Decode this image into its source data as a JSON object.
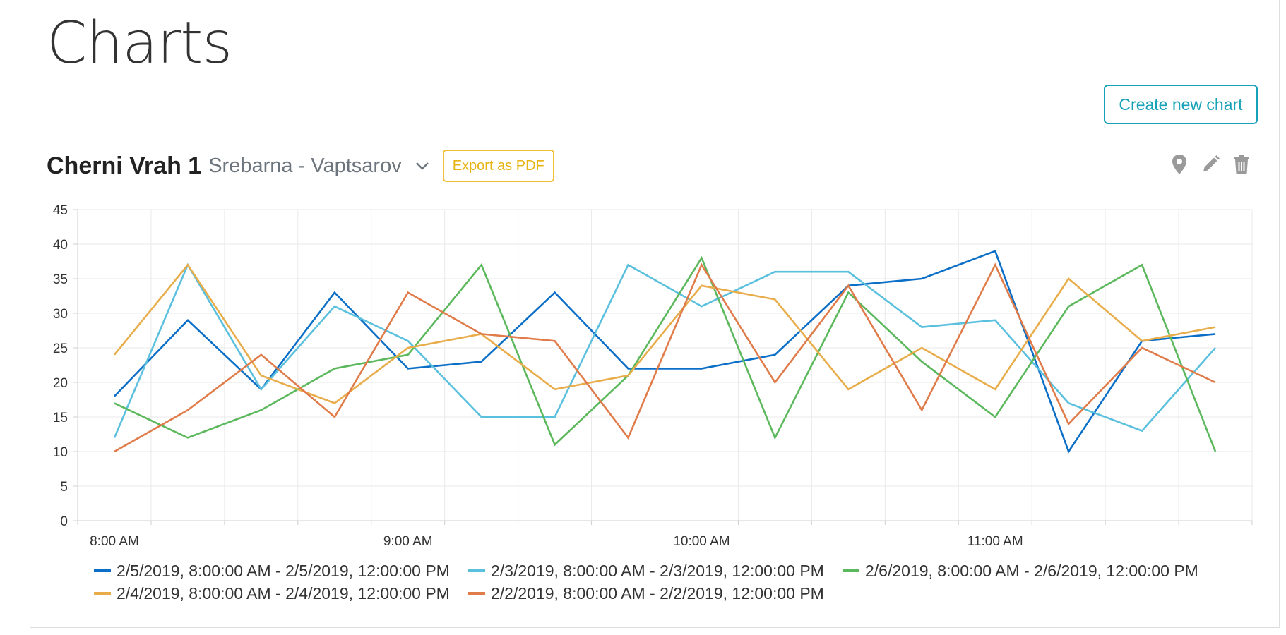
{
  "page": {
    "title": "Charts"
  },
  "toolbar": {
    "create_label": "Create new chart"
  },
  "chart_card": {
    "title": "Cherni Vrah 1",
    "subtitle": "Srebarna - Vaptsarov",
    "export_label": "Export as PDF",
    "icons": [
      "chevron-down-icon",
      "map-pin-icon",
      "pencil-icon",
      "trash-icon"
    ]
  },
  "chart_data": {
    "type": "line",
    "title": "",
    "xlabel": "",
    "ylabel": "",
    "ylim": [
      0,
      45
    ],
    "yticks": [
      0,
      5,
      10,
      15,
      20,
      25,
      30,
      35,
      40,
      45
    ],
    "x": [
      "8:00 AM",
      "8:15 AM",
      "8:30 AM",
      "8:45 AM",
      "9:00 AM",
      "9:15 AM",
      "9:30 AM",
      "9:45 AM",
      "10:00 AM",
      "10:15 AM",
      "10:30 AM",
      "10:45 AM",
      "11:00 AM",
      "11:15 AM",
      "11:30 AM",
      "11:45 AM"
    ],
    "xtick_labels": [
      "8:00 AM",
      "9:00 AM",
      "10:00 AM",
      "11:00 AM"
    ],
    "grid": true,
    "legend": "bottom",
    "series": [
      {
        "name": "2/5/2019, 8:00:00 AM - 2/5/2019, 12:00:00 PM",
        "color": "#0b6fc7",
        "values": [
          18,
          29,
          19,
          33,
          22,
          23,
          33,
          22,
          22,
          24,
          34,
          35,
          39,
          10,
          26,
          27
        ]
      },
      {
        "name": "2/3/2019, 8:00:00 AM - 2/3/2019, 12:00:00 PM",
        "color": "#5bc0de",
        "values": [
          12,
          37,
          19,
          31,
          26,
          15,
          15,
          37,
          31,
          36,
          36,
          28,
          29,
          17,
          13,
          25
        ]
      },
      {
        "name": "2/6/2019, 8:00:00 AM - 2/6/2019, 12:00:00 PM",
        "color": "#5cb85c",
        "values": [
          17,
          12,
          16,
          22,
          24,
          37,
          11,
          21,
          38,
          12,
          33,
          23,
          15,
          31,
          37,
          10
        ]
      },
      {
        "name": "2/4/2019, 8:00:00 AM - 2/4/2019, 12:00:00 PM",
        "color": "#e8ad4a",
        "values": [
          24,
          37,
          21,
          17,
          25,
          27,
          19,
          21,
          34,
          32,
          19,
          25,
          19,
          35,
          26,
          28
        ]
      },
      {
        "name": "2/2/2019, 8:00:00 AM - 2/2/2019, 12:00:00 PM",
        "color": "#e07b4a",
        "values": [
          10,
          16,
          24,
          15,
          33,
          27,
          26,
          12,
          37,
          20,
          34,
          16,
          37,
          14,
          25,
          20
        ]
      }
    ]
  }
}
